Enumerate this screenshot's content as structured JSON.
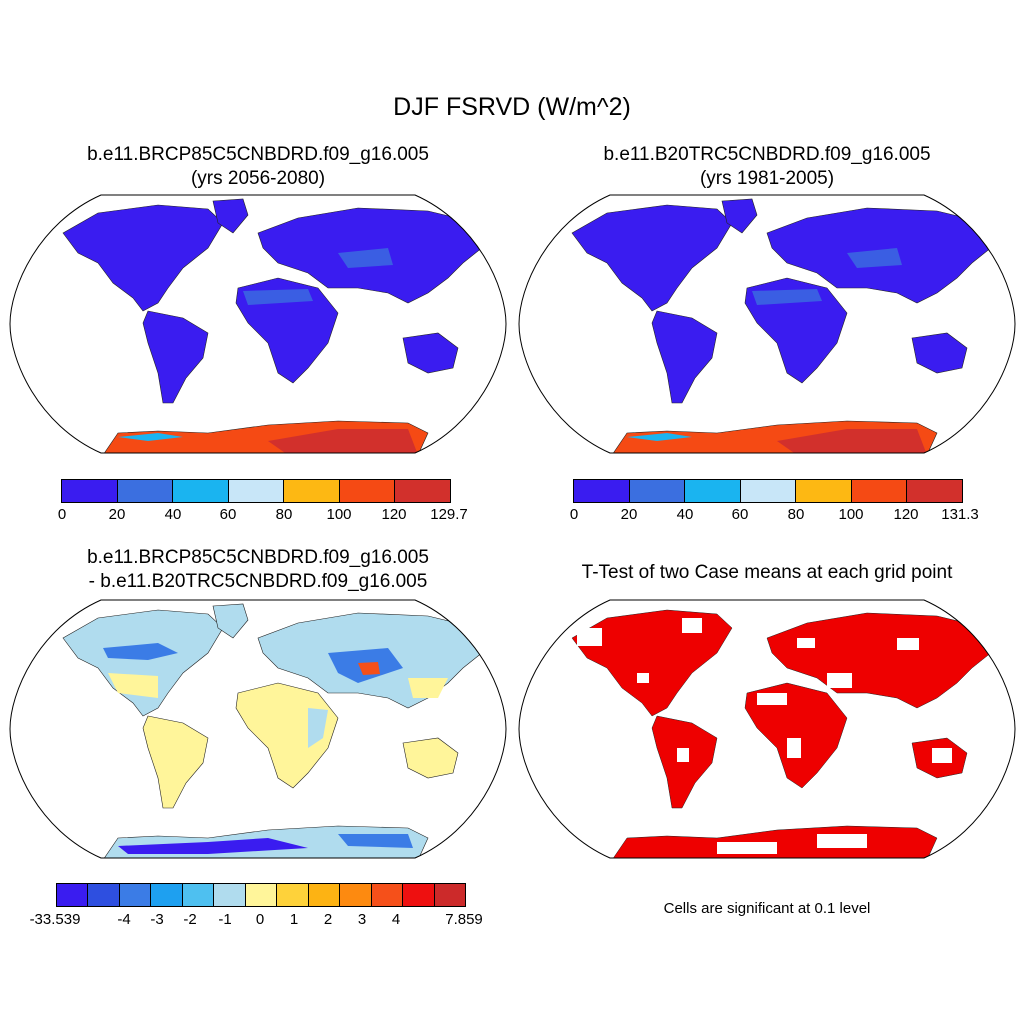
{
  "title": "DJF FSRVD (W/m^2)",
  "panels": {
    "top_left": {
      "title_line1": "b.e11.BRCP85C5CNBDRD.f09_g16.005",
      "title_line2": "(yrs 2056-2080)",
      "colorbar": {
        "colors": [
          "#3a1cf0",
          "#3b6fe0",
          "#1ab4f0",
          "#c8e6f8",
          "#fdb813",
          "#f54a14",
          "#d2302c"
        ],
        "ticks": [
          "0",
          "20",
          "40",
          "60",
          "80",
          "100",
          "120",
          "129.7"
        ]
      }
    },
    "top_right": {
      "title_line1": "b.e11.B20TRC5CNBDRD.f09_g16.005",
      "title_line2": "(yrs 1981-2005)",
      "colorbar": {
        "colors": [
          "#3a1cf0",
          "#3b6fe0",
          "#1ab4f0",
          "#c8e6f8",
          "#fdb813",
          "#f54a14",
          "#d2302c"
        ],
        "ticks": [
          "0",
          "20",
          "40",
          "60",
          "80",
          "100",
          "120",
          "131.3"
        ]
      }
    },
    "bottom_left": {
      "title_line1": "b.e11.BRCP85C5CNBDRD.f09_g16.005",
      "title_line2": "- b.e11.B20TRC5CNBDRD.f09_g16.005",
      "colorbar": {
        "colors": [
          "#3a1cf0",
          "#2e4fe0",
          "#3b7ce6",
          "#1ea0f0",
          "#4ec0f0",
          "#b0dcee",
          "#fff59a",
          "#fed23a",
          "#fdb313",
          "#fd8a10",
          "#f5501a",
          "#ee1010",
          "#cc2a2a"
        ],
        "ticks": [
          "-33.539",
          "-4",
          "-3",
          "-2",
          "-1",
          "0",
          "1",
          "2",
          "3",
          "4",
          "7.859"
        ]
      }
    },
    "bottom_right": {
      "title": "T-Test of two Case means at each grid point",
      "note": "Cells are significant at 0.1 level"
    }
  },
  "colors": {
    "land_base": "#3a1cf0",
    "land_light": "#3b6fe0",
    "antarctic_orange": "#f54a14",
    "antarctic_red": "#d2302c",
    "diff_yellow": "#fff59a",
    "diff_lightblue": "#b0dcee",
    "diff_blue": "#3b7ce6",
    "significance_red": "#ee0000"
  }
}
